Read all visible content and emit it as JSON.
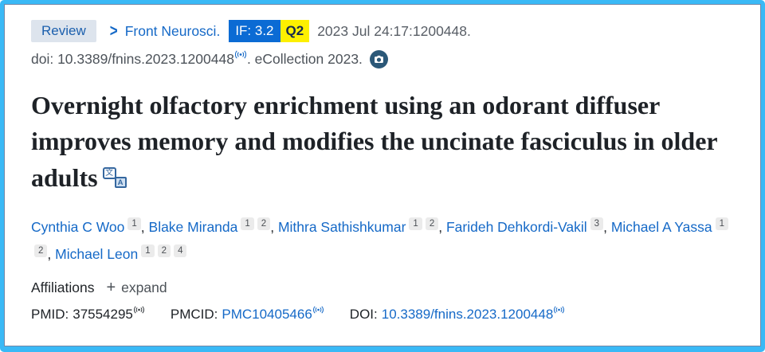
{
  "banner": {
    "pub_type": "Review",
    "journal": "Front Neurosci.",
    "impact_factor": "IF: 3.2",
    "quartile": "Q2",
    "citation": "2023 Jul 24:17:1200448.",
    "doi_text": "doi: 10.3389/fnins.2023.1200448",
    "ecollection_text": ". eCollection 2023."
  },
  "title": "Overnight olfactory enrichment using an odorant diffuser improves memory and modifies the uncinate fasciculus in older adults",
  "authors": [
    {
      "name": "Cynthia C Woo",
      "affiliations": [
        "1"
      ]
    },
    {
      "name": "Blake Miranda",
      "affiliations": [
        "1",
        "2"
      ]
    },
    {
      "name": "Mithra Sathishkumar",
      "affiliations": [
        "1",
        "2"
      ]
    },
    {
      "name": "Farideh Dehkordi-Vakil",
      "affiliations": [
        "3"
      ]
    },
    {
      "name": "Michael A Yassa",
      "affiliations": [
        "1",
        "2"
      ]
    },
    {
      "name": "Michael Leon",
      "affiliations": [
        "1",
        "2",
        "4"
      ]
    }
  ],
  "affiliations_section": {
    "label": "Affiliations",
    "plus": "+",
    "expand": "expand"
  },
  "identifiers": {
    "pmid_label": "PMID:",
    "pmid_value": "37554295",
    "pmcid_label": "PMCID:",
    "pmcid_value": "PMC10405466",
    "doi_label": "DOI:",
    "doi_value": "10.3389/fnins.2023.1200448"
  },
  "colors": {
    "frame": "#3ab9f6",
    "link": "#1569c7",
    "if_badge_bg": "#0b6bd4",
    "quartile_badge_bg": "#fdf000",
    "review_badge_bg": "#dde4ed"
  }
}
